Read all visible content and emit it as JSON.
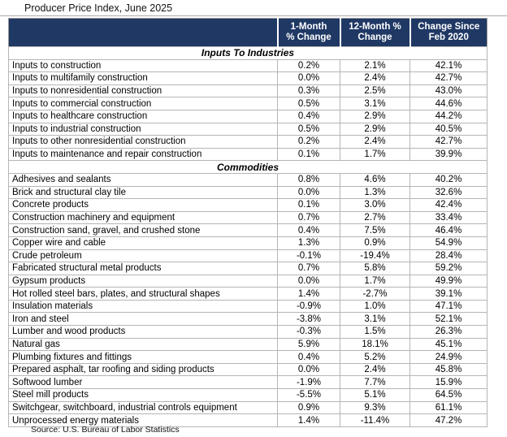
{
  "title": "Producer Price Index, June 2025",
  "source": "Source: U.S. Bureau of Labor Statistics",
  "colors": {
    "header_bg": "#1F3864",
    "header_text": "#FFFFFF",
    "grid": "#B5B5B5"
  },
  "chart_data": {
    "type": "table",
    "title": "Producer Price Index, June 2025",
    "columns": [
      {
        "line1": "",
        "line2": ""
      },
      {
        "line1": "1-Month",
        "line2": "% Change"
      },
      {
        "line1": "12-Month %",
        "line2": "Change"
      },
      {
        "line1": "Change Since",
        "line2": "Feb 2020"
      }
    ],
    "sections": [
      {
        "name": "Inputs To Industries",
        "rows": [
          [
            "Inputs to construction",
            "0.2%",
            "2.1%",
            "42.1%"
          ],
          [
            "Inputs to multifamily construction",
            "0.0%",
            "2.4%",
            "42.7%"
          ],
          [
            "Inputs to nonresidential construction",
            "0.3%",
            "2.5%",
            "43.0%"
          ],
          [
            "Inputs to commercial construction",
            "0.5%",
            "3.1%",
            "44.6%"
          ],
          [
            "Inputs to healthcare construction",
            "0.4%",
            "2.9%",
            "44.2%"
          ],
          [
            "Inputs to industrial construction",
            "0.5%",
            "2.9%",
            "40.5%"
          ],
          [
            "Inputs to other nonresidential construction",
            "0.2%",
            "2.4%",
            "42.7%"
          ],
          [
            "Inputs to maintenance and repair construction",
            "0.1%",
            "1.7%",
            "39.9%"
          ]
        ]
      },
      {
        "name": "Commodities",
        "rows": [
          [
            "Adhesives and sealants",
            "0.8%",
            "4.6%",
            "40.2%"
          ],
          [
            "Brick and structural clay tile",
            "0.0%",
            "1.3%",
            "32.6%"
          ],
          [
            "Concrete products",
            "0.1%",
            "3.0%",
            "42.4%"
          ],
          [
            "Construction machinery and equipment",
            "0.7%",
            "2.7%",
            "33.4%"
          ],
          [
            "Construction sand, gravel, and crushed stone",
            "0.4%",
            "7.5%",
            "46.4%"
          ],
          [
            "Copper wire and cable",
            "1.3%",
            "0.9%",
            "54.9%"
          ],
          [
            "Crude petroleum",
            "-0.1%",
            "-19.4%",
            "28.4%"
          ],
          [
            "Fabricated structural metal products",
            "0.7%",
            "5.8%",
            "59.2%"
          ],
          [
            "Gypsum products",
            "0.0%",
            "1.7%",
            "49.9%"
          ],
          [
            "Hot rolled steel bars, plates, and structural shapes",
            "1.4%",
            "-2.7%",
            "39.1%"
          ],
          [
            "Insulation materials",
            "-0.9%",
            "1.0%",
            "47.1%"
          ],
          [
            "Iron and steel",
            "-3.8%",
            "3.1%",
            "52.1%"
          ],
          [
            "Lumber and wood products",
            "-0.3%",
            "1.5%",
            "26.3%"
          ],
          [
            "Natural gas",
            "5.9%",
            "18.1%",
            "45.1%"
          ],
          [
            "Plumbing fixtures and fittings",
            "0.4%",
            "5.2%",
            "24.9%"
          ],
          [
            "Prepared asphalt, tar roofing and siding products",
            "0.0%",
            "2.4%",
            "45.8%"
          ],
          [
            "Softwood lumber",
            "-1.9%",
            "7.7%",
            "15.9%"
          ],
          [
            "Steel mill products",
            "-5.5%",
            "5.1%",
            "64.5%"
          ],
          [
            "Switchgear, switchboard, industrial controls equipment",
            "0.9%",
            "9.3%",
            "61.1%"
          ],
          [
            "Unprocessed energy materials",
            "1.4%",
            "-11.4%",
            "47.2%"
          ]
        ]
      }
    ],
    "source": "Source: U.S. Bureau of Labor Statistics"
  }
}
